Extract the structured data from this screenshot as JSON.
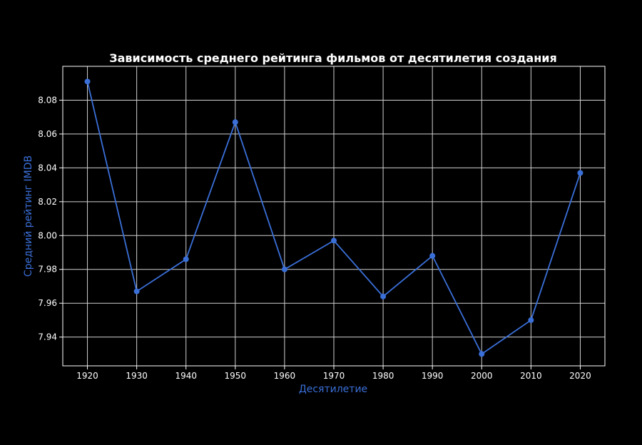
{
  "chart_data": {
    "type": "line",
    "title": "Зависимость среднего рейтинга фильмов от десятилетия создания",
    "xlabel": "Десятилетие",
    "ylabel": "Средний рейтинг IMDB",
    "x": [
      1920,
      1930,
      1940,
      1950,
      1960,
      1970,
      1980,
      1990,
      2000,
      2010,
      2020
    ],
    "x_ticks": [
      "1920",
      "1930",
      "1940",
      "1950",
      "1960",
      "1970",
      "1980",
      "1990",
      "2000",
      "2010",
      "2020"
    ],
    "y_ticks": [
      "7.94",
      "7.96",
      "7.98",
      "8.00",
      "8.02",
      "8.04",
      "8.06",
      "8.08"
    ],
    "series": [
      {
        "values": [
          8.091,
          7.967,
          7.986,
          8.067,
          7.98,
          7.997,
          7.964,
          7.988,
          7.93,
          7.95,
          8.037
        ]
      }
    ],
    "xlim": [
      1915,
      2025
    ],
    "ylim": [
      7.923,
      8.1
    ],
    "grid": true,
    "colors": {
      "background": "#000000",
      "line": "#3a6fd8",
      "grid": "#d0d0d0",
      "spines": "#ffffff",
      "text": "#ffffff",
      "axis_label": "#3a6fd8"
    }
  }
}
